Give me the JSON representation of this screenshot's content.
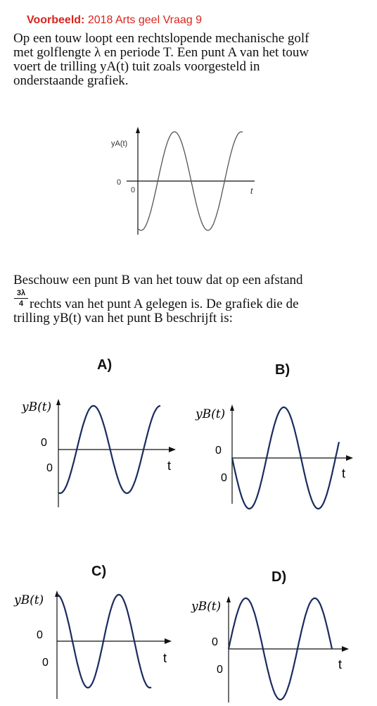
{
  "header": {
    "prefix": "Voorbeeld:",
    "title": "2018 Arts geel Vraag 9"
  },
  "intro_lines": [
    "Op een touw loopt een rechtslopende mechanische golf",
    "met golflengte λ en periode T. Een punt A van het touw",
    "voert de trilling yA(t) tuit zoals voorgesteld in",
    "onderstaande grafiek."
  ],
  "question": {
    "line1": "Beschouw een punt B van het touw dat op een afstand",
    "frac_num": "3λ",
    "frac_den": "4",
    "line2": "rechts van het punt A gelegen is. De grafiek die de",
    "line3": "trilling yB(t) van het punt B beschrijft is:"
  },
  "main_graph": {
    "ylabel": "yA(t)",
    "y_zero": "0",
    "x_zero": "0",
    "xlabel": "t"
  },
  "options": [
    {
      "label": "A)",
      "ylabel": "yB(t)",
      "y_zero": "0",
      "x_zero": "0",
      "xlabel": "t"
    },
    {
      "label": "B)",
      "ylabel": "yB(t)",
      "y_zero": "0",
      "x_zero": "0",
      "xlabel": "t"
    },
    {
      "label": "C)",
      "ylabel": "yB(t)",
      "y_zero": "0",
      "x_zero": "0",
      "xlabel": "t"
    },
    {
      "label": "D)",
      "ylabel": "yB(t)",
      "y_zero": "0",
      "x_zero": "0",
      "xlabel": "t"
    }
  ],
  "colors": {
    "header": "#d9251d",
    "wave": "#1b2b5e"
  }
}
